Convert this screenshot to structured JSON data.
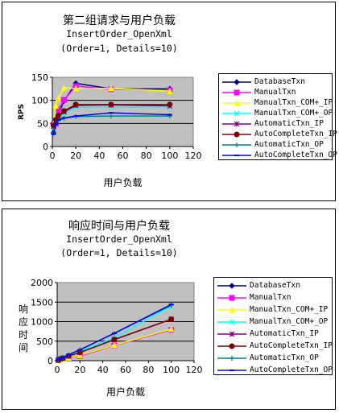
{
  "chart_data": [
    {
      "type": "line",
      "title": "第二组请求与用户负载",
      "subtitle": "InsertOrder_OpenXml",
      "subtitle2": "(Order=1, Details=10)",
      "xlabel": "用户负载",
      "ylabel": "RPS",
      "xlim": [
        0,
        120
      ],
      "ylim": [
        0,
        150
      ],
      "xticks": [
        0,
        20,
        40,
        60,
        80,
        100,
        120
      ],
      "yticks": [
        0,
        50,
        100,
        150
      ],
      "grid": true,
      "legend": "right",
      "x": [
        1,
        3,
        5,
        10,
        20,
        50,
        100
      ],
      "series": [
        {
          "name": "DatabaseTxn",
          "color": "#000080",
          "marker": "diamond",
          "values": [
            30,
            55,
            68,
            99,
            137,
            125,
            125
          ]
        },
        {
          "name": "ManualTxn",
          "color": "#ff00ff",
          "marker": "square",
          "values": [
            48,
            50,
            80,
            101,
            131,
            124,
            122
          ]
        },
        {
          "name": "ManualTxn_COM+_IP",
          "color": "#ffff00",
          "marker": "triangle",
          "values": [
            50,
            88,
            104,
            127,
            126,
            126,
            120
          ]
        },
        {
          "name": "ManualTxn_COM+_OP",
          "color": "#00ffff",
          "marker": "x",
          "values": [
            40,
            55,
            62,
            71,
            85,
            85,
            85
          ]
        },
        {
          "name": "AutomaticTxn_IP",
          "color": "#800080",
          "marker": "star",
          "values": [
            44,
            55,
            65,
            75,
            89,
            90,
            88
          ]
        },
        {
          "name": "AutoCompleteTxn_IP",
          "color": "#800000",
          "marker": "circle",
          "values": [
            46,
            58,
            67,
            77,
            91,
            91,
            91
          ]
        },
        {
          "name": "AutomaticTxn_OP",
          "color": "#008080",
          "marker": "plus",
          "values": [
            30,
            46,
            56,
            61,
            65,
            66,
            66
          ]
        },
        {
          "name": "AutoCompleteTxn_OP",
          "color": "#0000ff",
          "marker": "dash",
          "values": [
            27,
            48,
            58,
            62,
            66,
            73,
            69
          ]
        }
      ]
    },
    {
      "type": "line",
      "title": "响应时间与用户负载",
      "subtitle": "InsertOrder_OpenXml",
      "subtitle2": "(Order=1, Details=10)",
      "xlabel": "用户负载",
      "ylabel": "响应时间",
      "xlim": [
        0,
        120
      ],
      "ylim": [
        0,
        2000
      ],
      "xticks": [
        0,
        20,
        40,
        60,
        80,
        100,
        120
      ],
      "yticks": [
        0,
        500,
        1000,
        1500,
        2000
      ],
      "grid": true,
      "legend": "right",
      "x": [
        1,
        3,
        5,
        10,
        20,
        50,
        100
      ],
      "series": [
        {
          "name": "DatabaseTxn",
          "color": "#000080",
          "marker": "diamond",
          "values": [
            8,
            30,
            50,
            80,
            140,
            400,
            800
          ]
        },
        {
          "name": "ManualTxn",
          "color": "#ff00ff",
          "marker": "square",
          "values": [
            10,
            30,
            50,
            70,
            120,
            390,
            790
          ]
        },
        {
          "name": "ManualTxn_COM+_IP",
          "color": "#ffff00",
          "marker": "triangle",
          "values": [
            10,
            30,
            48,
            75,
            140,
            400,
            810
          ]
        },
        {
          "name": "ManualTxn_COM+_OP",
          "color": "#00ffff",
          "marker": "x",
          "values": [
            15,
            50,
            70,
            130,
            240,
            580,
            1400
          ]
        },
        {
          "name": "AutomaticTxn_IP",
          "color": "#800080",
          "marker": "star",
          "values": [
            12,
            45,
            65,
            120,
            210,
            540,
            1060
          ]
        },
        {
          "name": "AutoCompleteTxn_IP",
          "color": "#800000",
          "marker": "circle",
          "values": [
            12,
            45,
            65,
            120,
            210,
            540,
            1060
          ]
        },
        {
          "name": "AutomaticTxn_OP",
          "color": "#008080",
          "marker": "plus",
          "values": [
            20,
            55,
            80,
            150,
            280,
            700,
            1420
          ]
        },
        {
          "name": "AutoCompleteTxn_OP",
          "color": "#0000ff",
          "marker": "dash",
          "values": [
            20,
            55,
            80,
            150,
            280,
            700,
            1440
          ]
        }
      ]
    }
  ]
}
